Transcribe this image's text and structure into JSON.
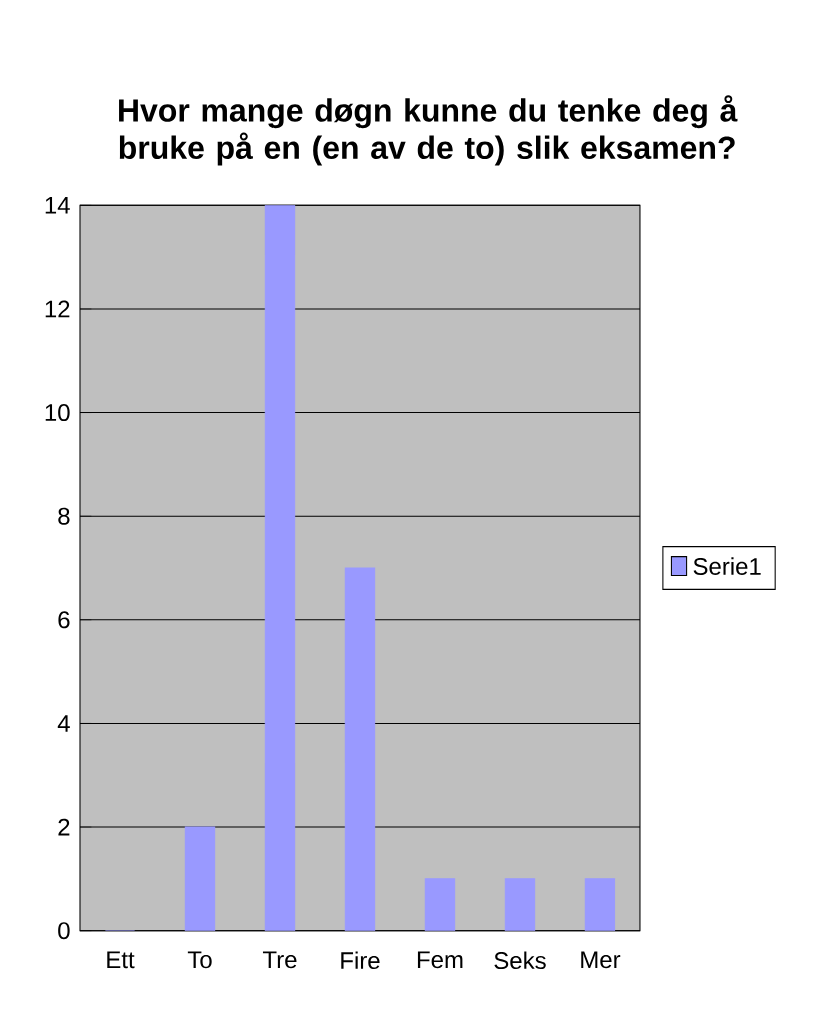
{
  "chart_data": {
    "type": "bar",
    "title": "Hvor mange døgn kunne du tenke deg å bruke på en (en av de to) slik eksamen?",
    "categories": [
      "Ett",
      "To",
      "Tre",
      "Fire",
      "Fem",
      "Seks",
      "Mer"
    ],
    "series": [
      {
        "name": "Serie1",
        "color": "#9999ff",
        "values": [
          0,
          2,
          14,
          7,
          1,
          1,
          1
        ]
      }
    ],
    "ylim": [
      0,
      14
    ],
    "yticks": [
      0,
      2,
      4,
      6,
      8,
      10,
      12,
      14
    ],
    "grid": "y",
    "legend": "right"
  }
}
